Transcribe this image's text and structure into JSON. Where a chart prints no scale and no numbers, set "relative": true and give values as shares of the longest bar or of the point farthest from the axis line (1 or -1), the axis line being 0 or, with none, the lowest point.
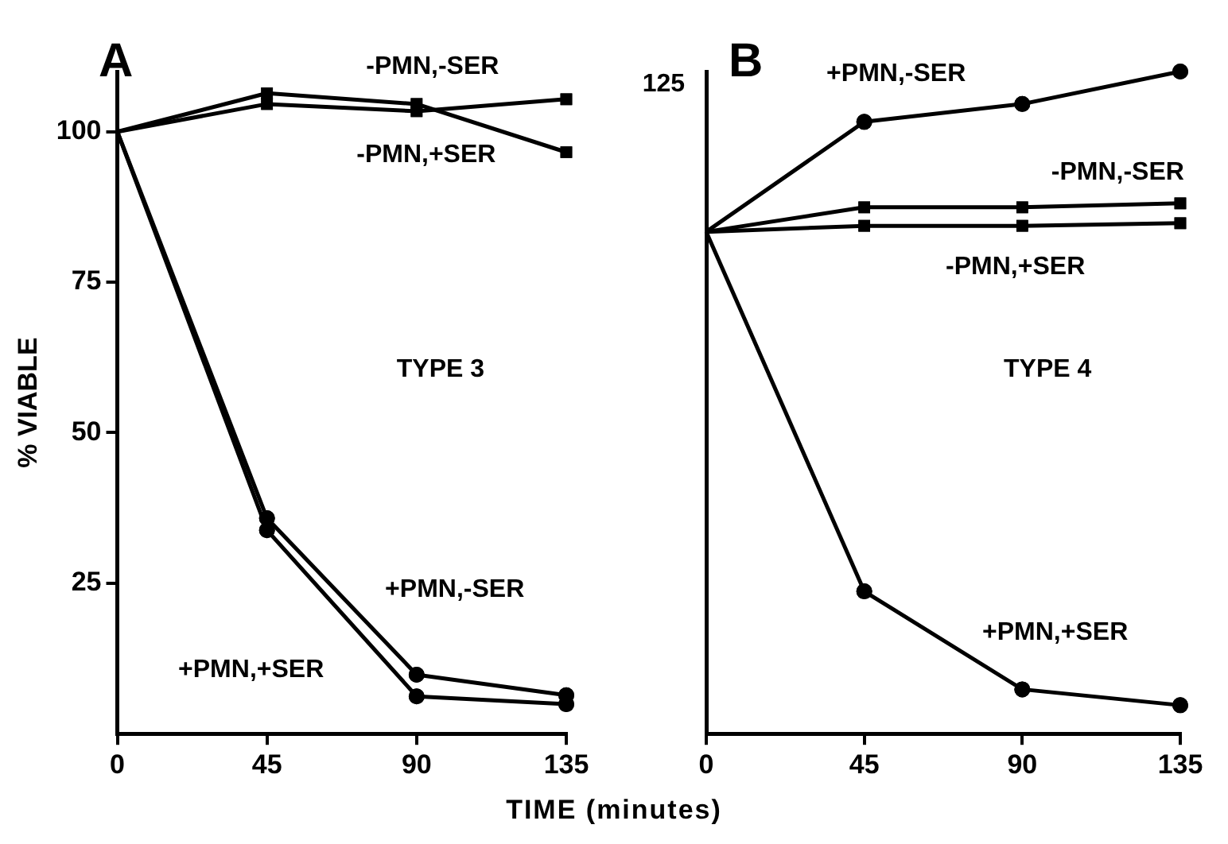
{
  "chart_data": [
    {
      "type": "line",
      "title": "A",
      "ylabel": "% VIABLE",
      "xlabel": "TIME (minutes)",
      "annotations": [
        "TYPE 3"
      ],
      "xlim": [
        0,
        135
      ],
      "xticks": [
        0,
        45,
        90,
        135
      ],
      "ylim": [
        0,
        110
      ],
      "yticks": [
        25,
        50,
        75,
        100
      ],
      "grid": false,
      "legend": false,
      "x": [
        0,
        45,
        90,
        135
      ],
      "series": [
        {
          "name": "-PMN,-SER",
          "color": "#000000",
          "marker": "square",
          "values": [
            100,
            104.6,
            103.4,
            105.4
          ]
        },
        {
          "name": "-PMN,+SER",
          "color": "#000000",
          "marker": "square",
          "values": [
            100,
            106.4,
            104.6,
            96.6
          ]
        },
        {
          "name": "+PMN,-SER",
          "color": "#000000",
          "marker": "circle",
          "values": [
            100,
            35.8,
            9.8,
            6.4
          ]
        },
        {
          "name": "+PMN,+SER",
          "color": "#000000",
          "marker": "circle",
          "values": [
            100,
            33.8,
            6.2,
            4.9
          ]
        }
      ]
    },
    {
      "type": "line",
      "title": "B",
      "annotations": [
        "TYPE 4",
        "125"
      ],
      "relative": true,
      "xlim": [
        0,
        135
      ],
      "xticks": [
        0,
        45,
        90,
        135
      ],
      "grid": false,
      "legend": false,
      "x": [
        0,
        45,
        90,
        135
      ],
      "series": [
        {
          "name": "+PMN,-SER",
          "color": "#000000",
          "marker": "circle",
          "values": [
            0.758,
            0.924,
            0.951,
            1
          ]
        },
        {
          "name": "-PMN,-SER",
          "color": "#000000",
          "marker": "square",
          "values": [
            0.758,
            0.795,
            0.795,
            0.801
          ]
        },
        {
          "name": "-PMN,+SER",
          "color": "#000000",
          "marker": "square",
          "values": [
            0.758,
            0.767,
            0.767,
            0.771
          ]
        },
        {
          "name": "+PMN,+SER",
          "color": "#000000",
          "marker": "circle",
          "values": [
            0.758,
            0.215,
            0.067,
            0.043
          ]
        }
      ]
    }
  ]
}
